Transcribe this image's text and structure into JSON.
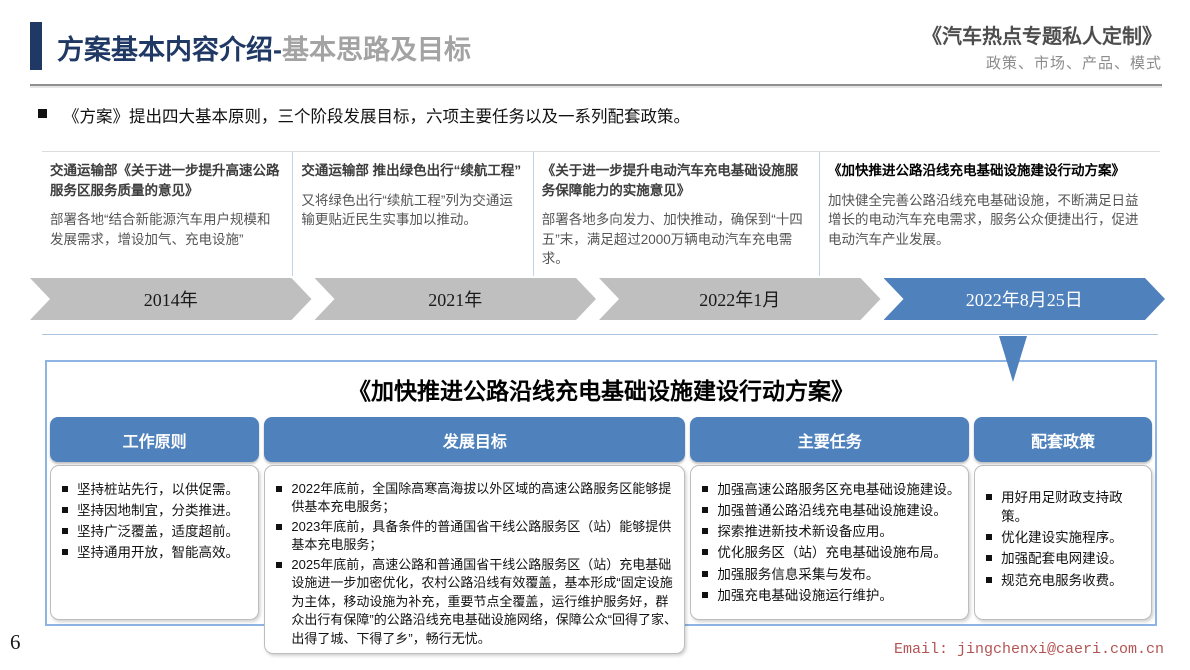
{
  "header": {
    "title_main": "方案基本内容介绍-",
    "title_sub": "基本思路及目标",
    "brand_title": "《汽车热点专题私人定制》",
    "brand_subtitle": "政策、市场、产品、模式"
  },
  "intro": "《方案》提出四大基本原则，三个阶段发展目标，六项主要任务以及一系列配套政策。",
  "timeline": {
    "stages": [
      {
        "header": "交通运输部《关于进一步提升高速公路服务区服务质量的意见》",
        "body": "部署各地“结合新能源汽车用户规模和发展需求，增设加气、充电设施”",
        "year": "2014年"
      },
      {
        "header": "交通运输部 推出绿色出行“续航工程”",
        "body": "又将绿色出行“续航工程”列为交通运输更贴近民生实事加以推动。",
        "year": "2021年"
      },
      {
        "header": "《关于进一步提升电动汽车充电基础设施服务保障能力的实施意见》",
        "body": "部署各地多向发力、加快推动，确保到“十四五”末，满足超过2000万辆电动汽车充电需求。",
        "year": "2022年1月"
      },
      {
        "header": "《加快推进公路沿线充电基础设施建设行动方案》",
        "body": "加快健全完善公路沿线充电基础设施，不断满足日益增长的电动汽车充电需求，服务公众便捷出行，促进电动汽车产业发展。",
        "year": "2022年8月25日"
      }
    ]
  },
  "plan_box": {
    "title": "《加快推进公路沿线充电基础设施建设行动方案》",
    "columns": [
      {
        "header": "工作原则",
        "items": [
          "坚持桩站先行，以供促需。",
          "坚持因地制宜，分类推进。",
          "坚持广泛覆盖，适度超前。",
          "坚持通用开放，智能高效。"
        ]
      },
      {
        "header": "发展目标",
        "items": [
          "2022年底前，全国除高寒高海拔以外区域的高速公路服务区能够提供基本充电服务；",
          "2023年底前，具备条件的普通国省干线公路服务区（站）能够提供基本充电服务；",
          "2025年底前，高速公路和普通国省干线公路服务区（站）充电基础设施进一步加密优化，农村公路沿线有效覆盖，基本形成“固定设施为主体，移动设施为补充，重要节点全覆盖，运行维护服务好，群众出行有保障”的公路沿线充电基础设施网络，保障公众“回得了家、出得了城、下得了乡”，畅行无忧。"
        ]
      },
      {
        "header": "主要任务",
        "items": [
          "加强高速公路服务区充电基础设施建设。",
          "加强普通公路沿线充电基础设施建设。",
          "探索推进新技术新设备应用。",
          "优化服务区（站）充电基础设施布局。",
          "加强服务信息采集与发布。",
          "加强充电基础设施运行维护。"
        ]
      },
      {
        "header": "配套政策",
        "items": [
          "用好用足财政支持政策。",
          "优化建设实施程序。",
          "加强配套电网建设。",
          "规范充电服务收费。"
        ]
      }
    ]
  },
  "footer": {
    "page_number": "6",
    "email": "Email: jingchenxi@caeri.com.cn"
  },
  "colors": {
    "accent_navy": "#1f3864",
    "accent_blue": "#4f81bd",
    "chevron_gray": "#bfbfbf",
    "box_border_blue": "#8eb4e3",
    "email_red": "#b35454"
  }
}
